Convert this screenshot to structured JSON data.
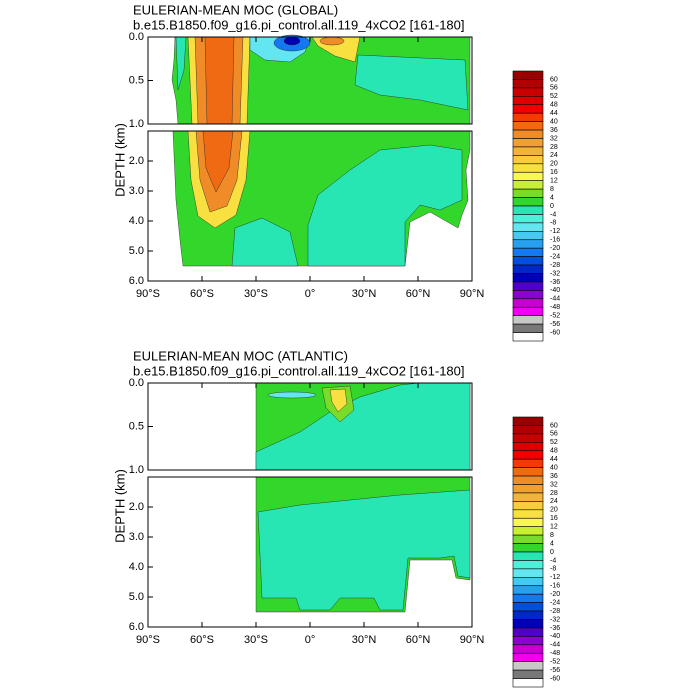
{
  "chart_data": [
    {
      "type": "contour",
      "title": "EULERIAN-MEAN MOC (GLOBAL)",
      "subtitle": "b.e15.B1850.f09_g16.pi_control.all.119_4xCO2 [161-180]",
      "ylabel": "DEPTH (km)",
      "xlim": [
        -90,
        90
      ],
      "xticks": [
        {
          "value": -90,
          "label": "90°S"
        },
        {
          "value": -60,
          "label": "60°S"
        },
        {
          "value": -30,
          "label": "30°S"
        },
        {
          "value": 0,
          "label": "0°"
        },
        {
          "value": 30,
          "label": "30°N"
        },
        {
          "value": 60,
          "label": "60°N"
        },
        {
          "value": 90,
          "label": "90°N"
        }
      ],
      "panels": [
        {
          "ylim": [
            0,
            1
          ],
          "yticks": [
            {
              "value": 0,
              "label": "0.0"
            },
            0.5,
            {
              "value": 1,
              "label": "1.0"
            }
          ]
        },
        {
          "ylim": [
            1,
            6
          ],
          "yticks": [
            {
              "value": 2,
              "label": "2.0"
            },
            {
              "value": 3,
              "label": "3.0"
            },
            {
              "value": 4,
              "label": "4.0"
            },
            {
              "value": 5,
              "label": "5.0"
            },
            {
              "value": 6,
              "label": "6.0"
            }
          ]
        }
      ],
      "colorbar": {
        "levels": [
          60,
          56,
          52,
          48,
          44,
          40,
          36,
          32,
          28,
          24,
          20,
          16,
          12,
          8,
          4,
          0,
          -4,
          -8,
          -12,
          -16,
          -20,
          -24,
          -28,
          -32,
          -36,
          -40,
          -44,
          -48,
          -52,
          -56,
          -60
        ],
        "colors": [
          "#9b0000",
          "#b00000",
          "#c80000",
          "#dc0000",
          "#f00000",
          "#f03c00",
          "#f06a14",
          "#f08c28",
          "#f0a030",
          "#f0b43c",
          "#f8cc3c",
          "#f8e040",
          "#f8f850",
          "#c8f030",
          "#78dc28",
          "#33d62a",
          "#28e6b4",
          "#50f0d8",
          "#64e6f0",
          "#46c8f0",
          "#28a0f0",
          "#1478f0",
          "#0050dc",
          "#0028c8",
          "#0000b4",
          "#5000c8",
          "#8c00d2",
          "#c800d2",
          "#f000f0",
          "#c8c8c8",
          "#787878",
          "#ffffff"
        ]
      }
    },
    {
      "type": "contour",
      "title": "EULERIAN-MEAN MOC (ATLANTIC)",
      "subtitle": "b.e15.B1850.f09_g16.pi_control.all.119_4xCO2 [161-180]",
      "ylabel": "DEPTH (km)",
      "xlim": [
        -90,
        90
      ],
      "xticks": [
        {
          "value": -90,
          "label": "90°S"
        },
        {
          "value": -60,
          "label": "60°S"
        },
        {
          "value": -30,
          "label": "30°S"
        },
        {
          "value": 0,
          "label": "0°"
        },
        {
          "value": 30,
          "label": "30°N"
        },
        {
          "value": 60,
          "label": "60°N"
        },
        {
          "value": 90,
          "label": "90°N"
        }
      ],
      "panels": [
        {
          "ylim": [
            0,
            1
          ],
          "yticks": [
            {
              "value": 0,
              "label": "0.0"
            },
            0.5,
            {
              "value": 1,
              "label": "1.0"
            }
          ]
        },
        {
          "ylim": [
            1,
            6
          ],
          "yticks": [
            {
              "value": 2,
              "label": "2.0"
            },
            {
              "value": 3,
              "label": "3.0"
            },
            {
              "value": 4,
              "label": "4.0"
            },
            {
              "value": 5,
              "label": "5.0"
            },
            {
              "value": 6,
              "label": "6.0"
            }
          ]
        }
      ],
      "colorbar": {
        "levels": [
          60,
          56,
          52,
          48,
          44,
          40,
          36,
          32,
          28,
          24,
          20,
          16,
          12,
          8,
          4,
          0,
          -4,
          -8,
          -12,
          -16,
          -20,
          -24,
          -28,
          -32,
          -36,
          -40,
          -44,
          -48,
          -52,
          -56,
          -60
        ],
        "colors": [
          "#9b0000",
          "#b00000",
          "#c80000",
          "#dc0000",
          "#f00000",
          "#f03c00",
          "#f06a14",
          "#f08c28",
          "#f0a030",
          "#f0b43c",
          "#f8cc3c",
          "#f8e040",
          "#f8f850",
          "#c8f030",
          "#78dc28",
          "#33d62a",
          "#28e6b4",
          "#50f0d8",
          "#64e6f0",
          "#46c8f0",
          "#28a0f0",
          "#1478f0",
          "#0050dc",
          "#0028c8",
          "#0000b4",
          "#5000c8",
          "#8c00d2",
          "#c800d2",
          "#f000f0",
          "#c8c8c8",
          "#787878",
          "#ffffff"
        ]
      }
    }
  ]
}
